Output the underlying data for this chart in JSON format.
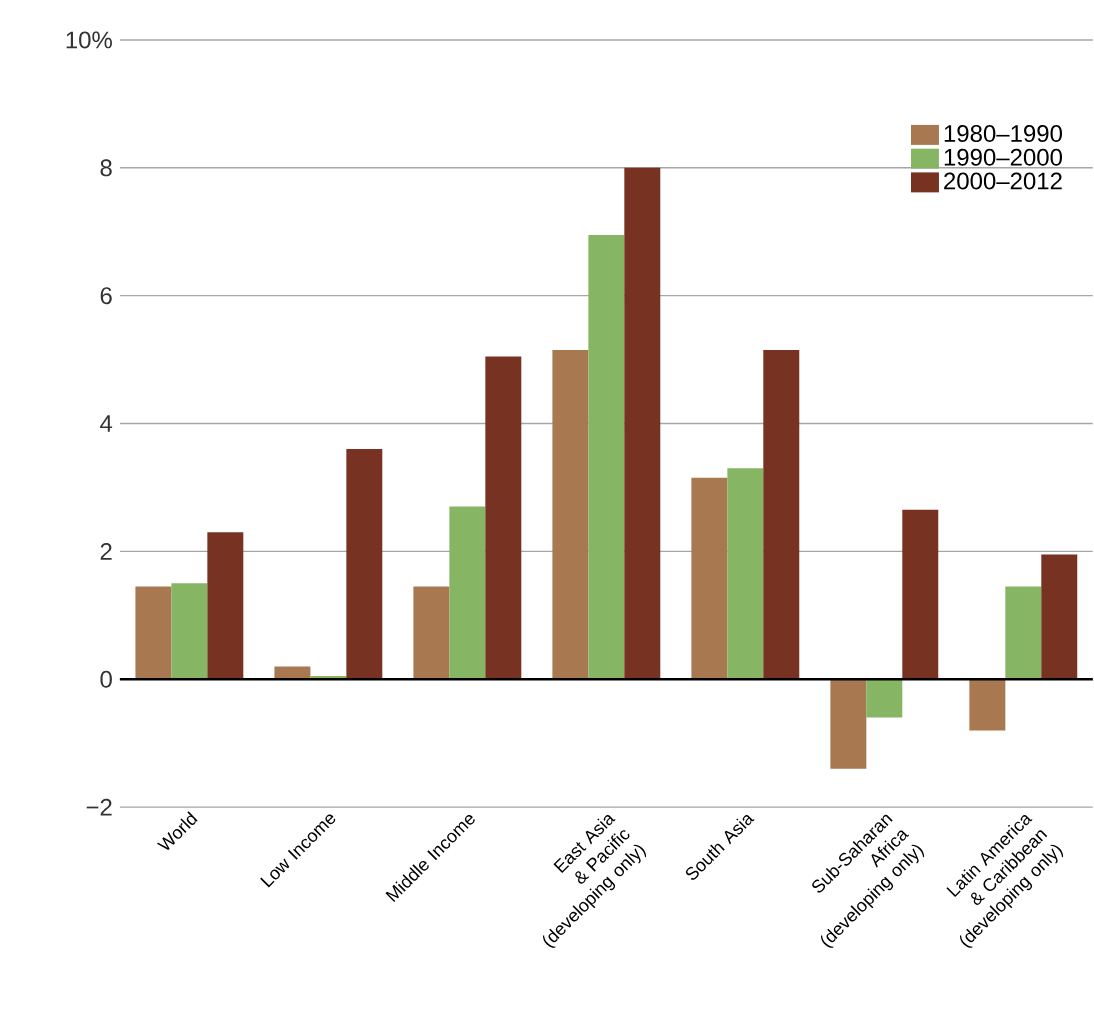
{
  "chart_data": {
    "type": "bar",
    "categories": [
      "World",
      "Low Income",
      "Middle Income",
      "East Asia & Pacific (developing only)",
      "South Asia",
      "Sub-Saharan Africa (developing only)",
      "Latin America & Caribbean (developing only)"
    ],
    "series": [
      {
        "name": "1980–1990",
        "color": "#a87850",
        "values": [
          1.45,
          0.2,
          1.45,
          5.15,
          3.15,
          -1.4,
          -0.8
        ]
      },
      {
        "name": "1990–2000",
        "color": "#86b563",
        "values": [
          1.5,
          0.05,
          2.7,
          6.95,
          3.3,
          -0.6,
          1.45
        ]
      },
      {
        "name": "2000–2012",
        "color": "#773222",
        "values": [
          2.3,
          3.6,
          5.05,
          8.0,
          5.15,
          2.65,
          1.95
        ]
      }
    ],
    "ylim": [
      -2,
      10
    ],
    "yticks": [
      {
        "value": -2,
        "label": "−2"
      },
      0,
      2,
      4,
      6,
      8,
      {
        "value": 10,
        "label": "10%"
      }
    ],
    "grid": "y",
    "legend": "top right",
    "ref_lines": [
      {
        "axis": "y",
        "value": 0,
        "color": "#000000"
      }
    ]
  }
}
